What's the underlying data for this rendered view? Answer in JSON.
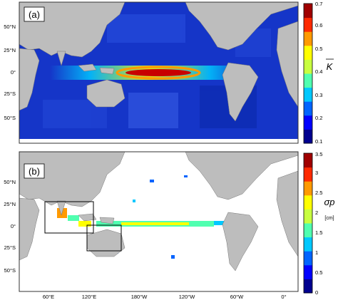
{
  "panels": [
    {
      "label": "(a)",
      "symbol": "K",
      "unit": "",
      "ticks": [
        "0.1",
        "0.2",
        "0.3",
        "0.4",
        "0.5",
        "0.6",
        "0.7"
      ],
      "colors": [
        "#00008f",
        "#0000ff",
        "#0064ff",
        "#00c8ff",
        "#50ffb0",
        "#c8ff40",
        "#ffff00",
        "#ff9a00",
        "#ff2a00",
        "#a00000"
      ]
    },
    {
      "label": "(b)",
      "symbol": "σp",
      "unit": "[cm]",
      "ticks": [
        "0",
        "0.5",
        "1",
        "1.5",
        "2",
        "2.5",
        "3",
        "3.5"
      ],
      "colors": [
        "#00008f",
        "#0000ff",
        "#0064ff",
        "#00c8ff",
        "#50ffb0",
        "#c8ff40",
        "#ffff00",
        "#ff9a00",
        "#ff2a00",
        "#a00000"
      ]
    }
  ],
  "lat_labels": [
    "50°N",
    "25°N",
    "0°",
    "25°S",
    "50°S"
  ],
  "lon_labels": [
    "60°E",
    "120°E",
    "180°W",
    "120°W",
    "60°W",
    "0°"
  ],
  "land_color": "#bdbdbd",
  "ocean_color_a": "#1030b8"
}
